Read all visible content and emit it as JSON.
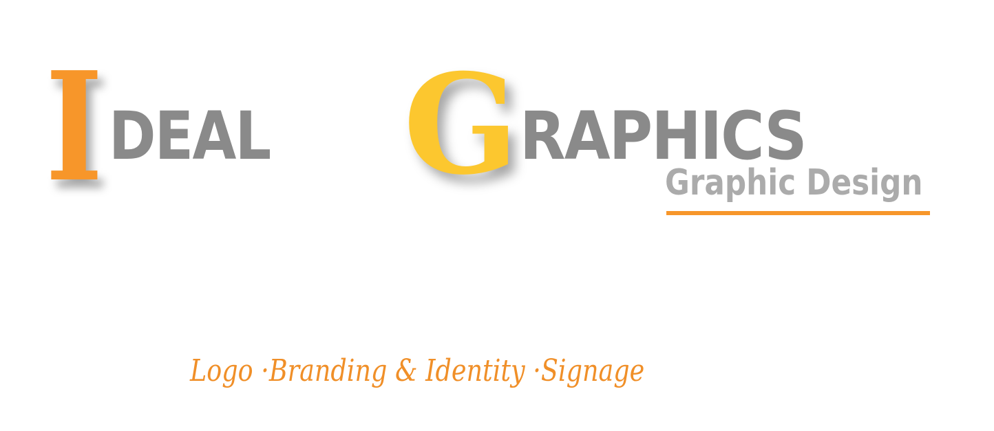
{
  "logo": {
    "word1": {
      "initial": "I",
      "rest": "DEAL"
    },
    "word2": {
      "initial": "G",
      "rest": "RAPHICS"
    },
    "subtitle": "Graphic Design",
    "colors": {
      "orange": "#f7962a",
      "yellow": "#fcc72f",
      "gray": "#8a8a8a",
      "light_gray": "#ababab"
    }
  },
  "tagline": "Logo ·Branding & Identity ·Signage"
}
